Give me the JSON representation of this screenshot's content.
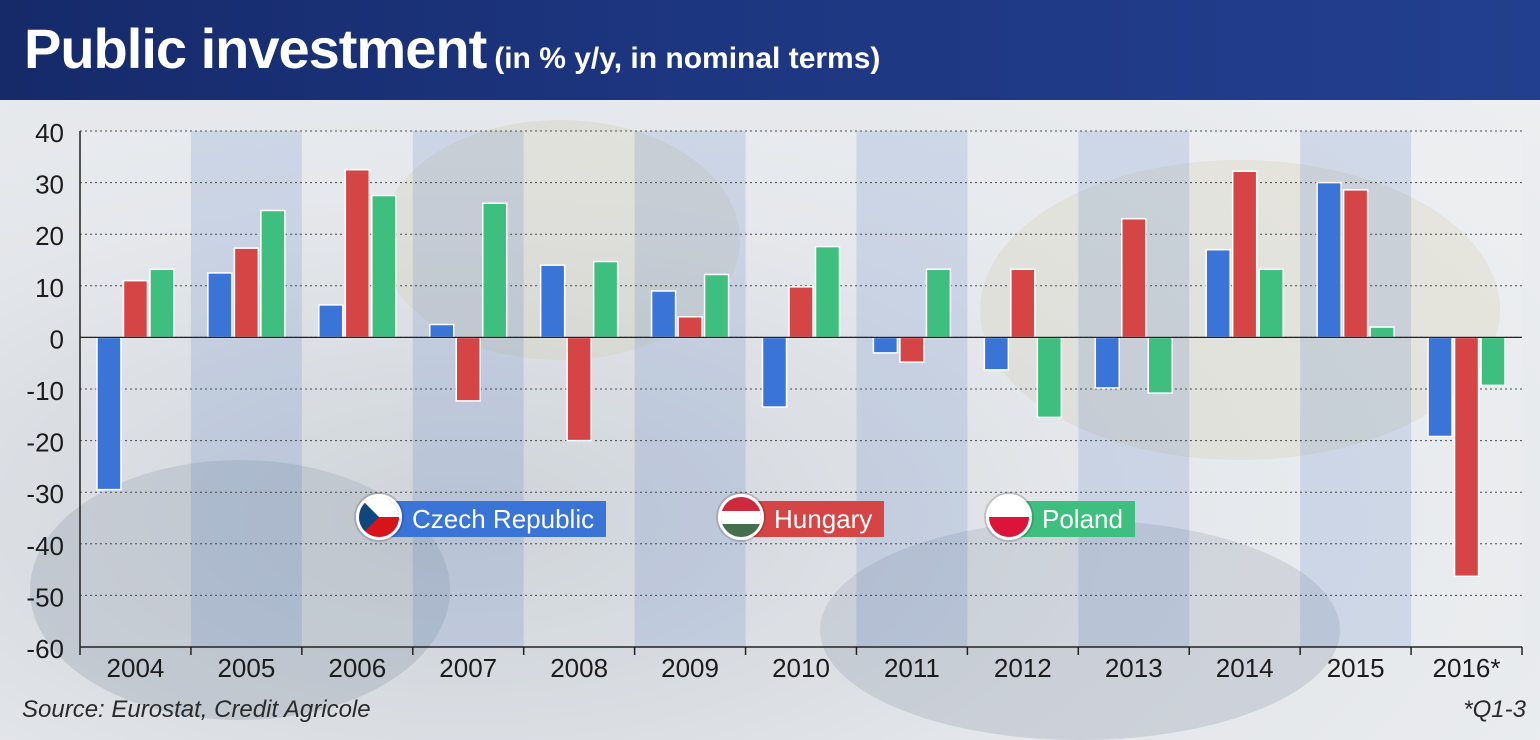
{
  "header": {
    "title": "Public investment",
    "subtitle": "(in % y/y, in nominal terms)"
  },
  "source": "Source: Eurostat, Credit Agricole",
  "footnote": "*Q1-3",
  "colors": {
    "czech": "#3a74d6",
    "hungary": "#d64545",
    "poland": "#3fbf7f",
    "header_bg": "#1d3680"
  },
  "legend": [
    {
      "label": "Czech Republic",
      "flag": "czech-flag-icon",
      "color": "#3a74d6"
    },
    {
      "label": "Hungary",
      "flag": "hungary-flag-icon",
      "color": "#d64545"
    },
    {
      "label": "Poland",
      "flag": "poland-flag-icon",
      "color": "#3fbf7f"
    }
  ],
  "chart_data": {
    "type": "bar",
    "title": "Public investment",
    "subtitle": "(in % y/y, in nominal terms)",
    "categories": [
      "2004",
      "2005",
      "2006",
      "2007",
      "2008",
      "2009",
      "2010",
      "2011",
      "2012",
      "2013",
      "2014",
      "2015",
      "2016*"
    ],
    "series": [
      {
        "name": "Czech Republic",
        "color": "#3a74d6",
        "values": [
          -29.5,
          12.5,
          6.3,
          2.5,
          14,
          9,
          -13.5,
          -3,
          -6.3,
          -9.8,
          17,
          30,
          -19.2
        ]
      },
      {
        "name": "Hungary",
        "color": "#d64545",
        "values": [
          11,
          17.3,
          32.5,
          -12.3,
          -20,
          4,
          9.8,
          -4.8,
          13.2,
          23,
          32.2,
          28.6,
          -46.3
        ]
      },
      {
        "name": "Poland",
        "color": "#3fbf7f",
        "values": [
          13.2,
          24.6,
          27.5,
          26,
          14.7,
          12.2,
          17.6,
          13.2,
          -15.5,
          -10.8,
          13.2,
          2,
          -9.3
        ]
      }
    ],
    "yticks": [
      40,
      30,
      20,
      10,
      0,
      -10,
      -20,
      -30,
      -40,
      -50,
      -60
    ],
    "ylim": [
      -60,
      40
    ],
    "grid": true,
    "legend_position": "center"
  }
}
